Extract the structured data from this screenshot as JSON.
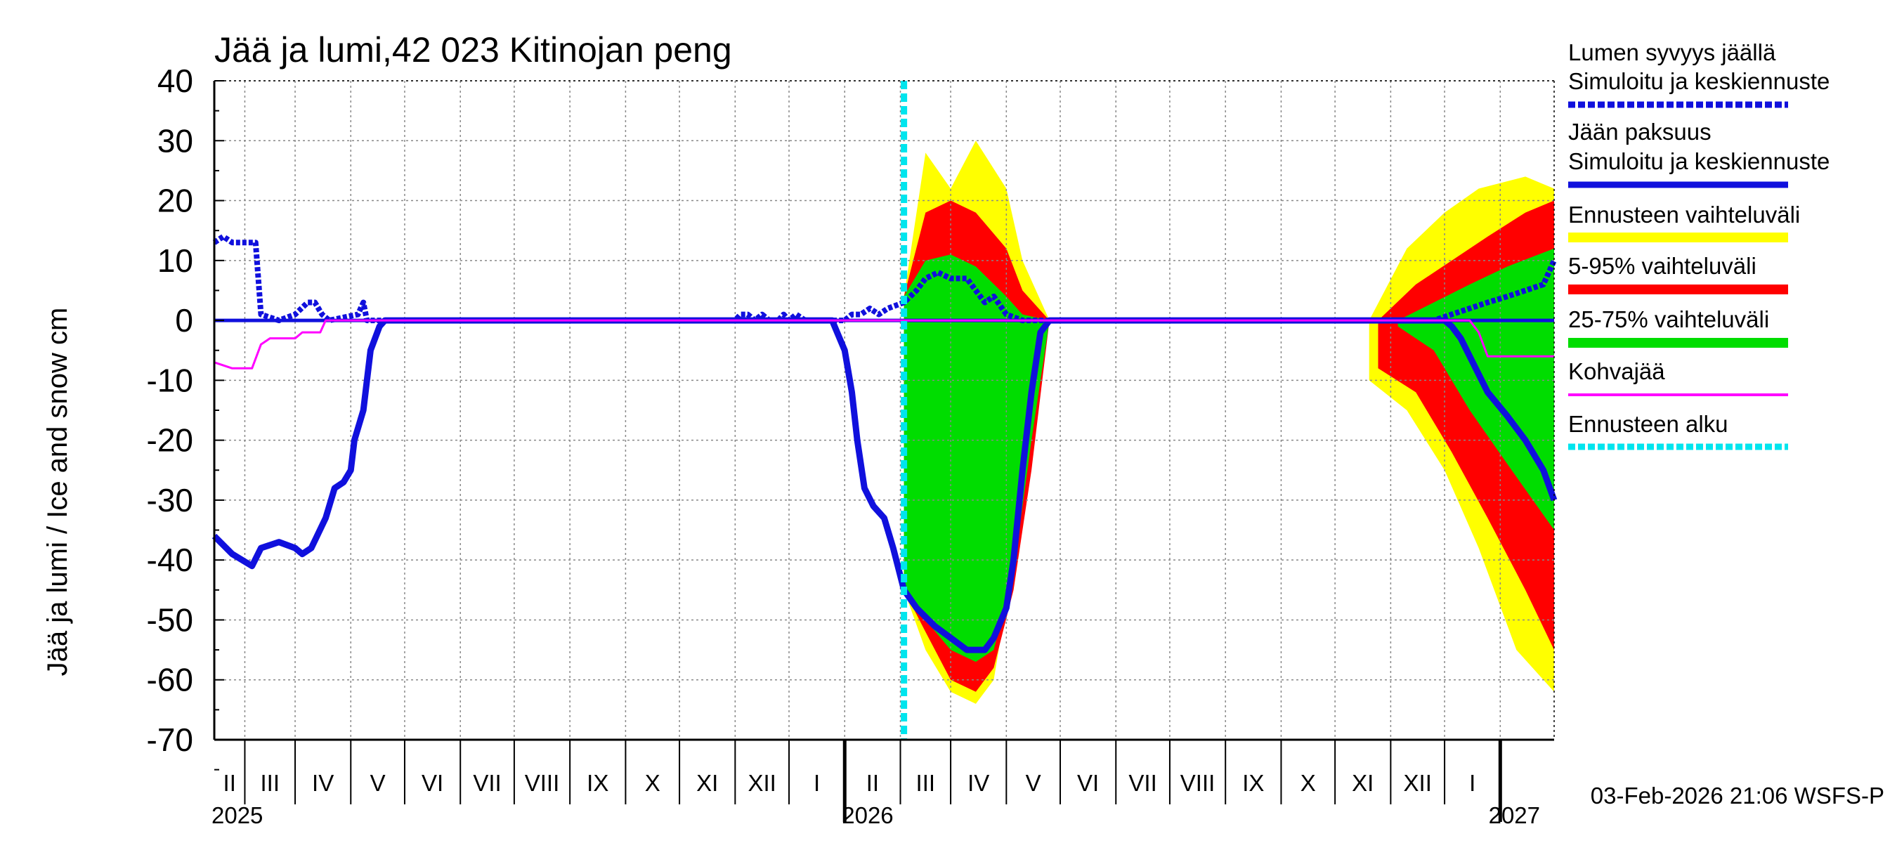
{
  "chart_data": {
    "type": "area",
    "title": "Jää ja lumi,42 023 Kitinojan peng",
    "ylabel": "Jää ja lumi / Ice and snow    cm",
    "ylim": [
      -70,
      40
    ],
    "yticks": [
      "40",
      "30",
      "20",
      "10",
      "0",
      "-10",
      "-20",
      "-30",
      "-40",
      "-50",
      "-60",
      "-70"
    ],
    "xlim": [
      "2025-01-15",
      "2027-01-31"
    ],
    "months": [
      "II",
      "III",
      "IV",
      "V",
      "VI",
      "VII",
      "VIII",
      "IX",
      "X",
      "XI",
      "XII",
      "I",
      "II",
      "III",
      "IV",
      "V",
      "VI",
      "VII",
      "VIII",
      "IX",
      "X",
      "XI",
      "XII",
      "I"
    ],
    "years": [
      "2025",
      "2026",
      "2027"
    ],
    "grid": true,
    "forecast_start": "2026-02-03",
    "footer": "03-Feb-2026 21:06 WSFS-P",
    "legend": [
      {
        "label": "Lumen syvyys jäällä",
        "color": ""
      },
      {
        "label": "Simuloitu ja keskiennuste",
        "color": "#1010dd",
        "style": "dashed"
      },
      {
        "label": "Jään paksuus",
        "color": ""
      },
      {
        "label": "Simuloitu ja keskiennuste",
        "color": "#1010dd",
        "style": "solid"
      },
      {
        "label": "Ennusteen vaihteluväli",
        "color": "#ffff00",
        "style": "band"
      },
      {
        "label": "5-95% vaihteluväli",
        "color": "#ff0000",
        "style": "band"
      },
      {
        "label": "25-75% vaihteluväli",
        "color": "#00dd00",
        "style": "band"
      },
      {
        "label": "Kohvajää",
        "color": "#ff00ff",
        "style": "thin"
      },
      {
        "label": "Ennusteen alku",
        "color": "#00e5ee",
        "style": "dashed"
      }
    ],
    "series": [
      {
        "name": "Lumen syvyys jäällä – Simuloitu ja keskiennuste",
        "color": "#1010dd",
        "x": [
          "2025-01-15",
          "2025-01-20",
          "2025-01-25",
          "2025-02-01",
          "2025-02-07",
          "2025-02-10",
          "2025-02-20",
          "2025-03-01",
          "2025-03-08",
          "2025-03-12",
          "2025-03-16",
          "2025-03-20",
          "2025-04-05",
          "2025-04-08",
          "2025-04-10",
          "2025-05-01",
          "2025-11-01",
          "2025-11-04",
          "2025-11-08",
          "2025-11-12",
          "2025-11-16",
          "2025-11-20",
          "2025-11-25",
          "2025-11-28",
          "2025-12-01",
          "2025-12-05",
          "2025-12-10",
          "2025-12-20",
          "2026-01-01",
          "2026-01-05",
          "2026-01-10",
          "2026-01-15",
          "2026-01-20",
          "2026-01-25",
          "2026-02-03",
          "2026-02-10",
          "2026-02-15",
          "2026-02-22",
          "2026-03-01",
          "2026-03-10",
          "2026-03-15",
          "2026-03-20",
          "2026-03-25",
          "2026-04-01",
          "2026-04-10",
          "2026-11-15",
          "2026-11-25",
          "2026-12-05",
          "2026-12-15",
          "2026-12-25",
          "2027-01-05",
          "2027-01-15",
          "2027-01-25",
          "2027-01-31"
        ],
        "y": [
          13,
          14,
          13,
          13,
          13,
          1,
          0,
          1,
          3,
          3,
          1,
          0,
          1,
          3,
          0,
          0,
          0,
          1,
          1,
          0,
          1,
          0,
          0,
          1,
          0,
          1,
          0,
          0,
          0,
          1,
          1,
          2,
          1,
          2,
          3,
          5,
          7,
          8,
          7,
          7,
          5,
          3,
          4,
          1,
          0,
          0,
          0,
          1,
          2,
          3,
          4,
          5,
          6,
          10
        ]
      },
      {
        "name": "Jään paksuus – Simuloitu ja keskiennuste",
        "color": "#1010dd",
        "x": [
          "2025-01-15",
          "2025-01-25",
          "2025-02-05",
          "2025-02-10",
          "2025-02-20",
          "2025-03-01",
          "2025-03-05",
          "2025-03-10",
          "2025-03-18",
          "2025-03-23",
          "2025-03-28",
          "2025-04-01",
          "2025-04-03",
          "2025-04-08",
          "2025-04-12",
          "2025-04-17",
          "2025-04-20",
          "2025-04-25",
          "2025-04-30",
          "2025-05-03",
          "2025-05-05",
          "2025-12-25",
          "2026-01-01",
          "2026-01-05",
          "2026-01-08",
          "2026-01-12",
          "2026-01-17",
          "2026-01-23",
          "2026-01-28",
          "2026-02-03",
          "2026-02-10",
          "2026-02-20",
          "2026-03-01",
          "2026-03-10",
          "2026-03-20",
          "2026-03-25",
          "2026-04-01",
          "2026-04-05",
          "2026-04-10",
          "2026-04-15",
          "2026-04-20",
          "2026-04-25",
          "2026-04-28",
          "2026-05-01",
          "2026-11-10",
          "2026-11-20",
          "2026-11-25",
          "2026-12-01",
          "2026-12-05",
          "2026-12-10",
          "2026-12-15",
          "2026-12-20",
          "2026-12-25",
          "2027-01-05",
          "2027-01-15",
          "2027-01-25",
          "2027-01-31"
        ],
        "y": [
          -36,
          -39,
          -41,
          -38,
          -37,
          -38,
          -39,
          -38,
          -33,
          -28,
          -27,
          -25,
          -20,
          -15,
          -5,
          -1,
          0,
          0,
          0,
          0,
          0,
          0,
          -5,
          -12,
          -20,
          -28,
          -31,
          -33,
          -38,
          -45,
          -48,
          -51,
          -53,
          -55,
          -55,
          -53,
          -48,
          -40,
          -25,
          -12,
          -2,
          0,
          0,
          0,
          0,
          0,
          0,
          0,
          -1,
          -3,
          -6,
          -9,
          -12,
          -16,
          -20,
          -25,
          -30
        ]
      },
      {
        "name": "Kohvajää",
        "color": "#ff00ff",
        "x": [
          "2025-01-15",
          "2025-01-25",
          "2025-02-05",
          "2025-02-10",
          "2025-02-15",
          "2025-03-01",
          "2025-03-05",
          "2025-03-15",
          "2025-03-18",
          "2025-12-01",
          "2026-12-15",
          "2026-12-20",
          "2026-12-25",
          "2027-01-05",
          "2027-01-31"
        ],
        "y": [
          -7,
          -8,
          -8,
          -4,
          -3,
          -3,
          -2,
          -2,
          0,
          0,
          0,
          -2,
          -6,
          -6,
          -6
        ]
      }
    ],
    "bands": [
      {
        "name": "Ennusteen vaihteluväli",
        "color": "#ffff00",
        "top": [
          [
            0,
            0
          ]
        ],
        "bottom": [
          [
            0,
            0
          ]
        ]
      },
      {
        "name": "5-95% vaihteluväli",
        "color": "#ff0000",
        "top": [
          [
            0,
            0
          ]
        ],
        "bottom": [
          [
            0,
            0
          ]
        ]
      },
      {
        "name": "25-75% vaihteluväli",
        "color": "#00dd00",
        "top": [
          [
            0,
            0
          ]
        ],
        "bottom": [
          [
            0,
            0
          ]
        ]
      }
    ]
  }
}
